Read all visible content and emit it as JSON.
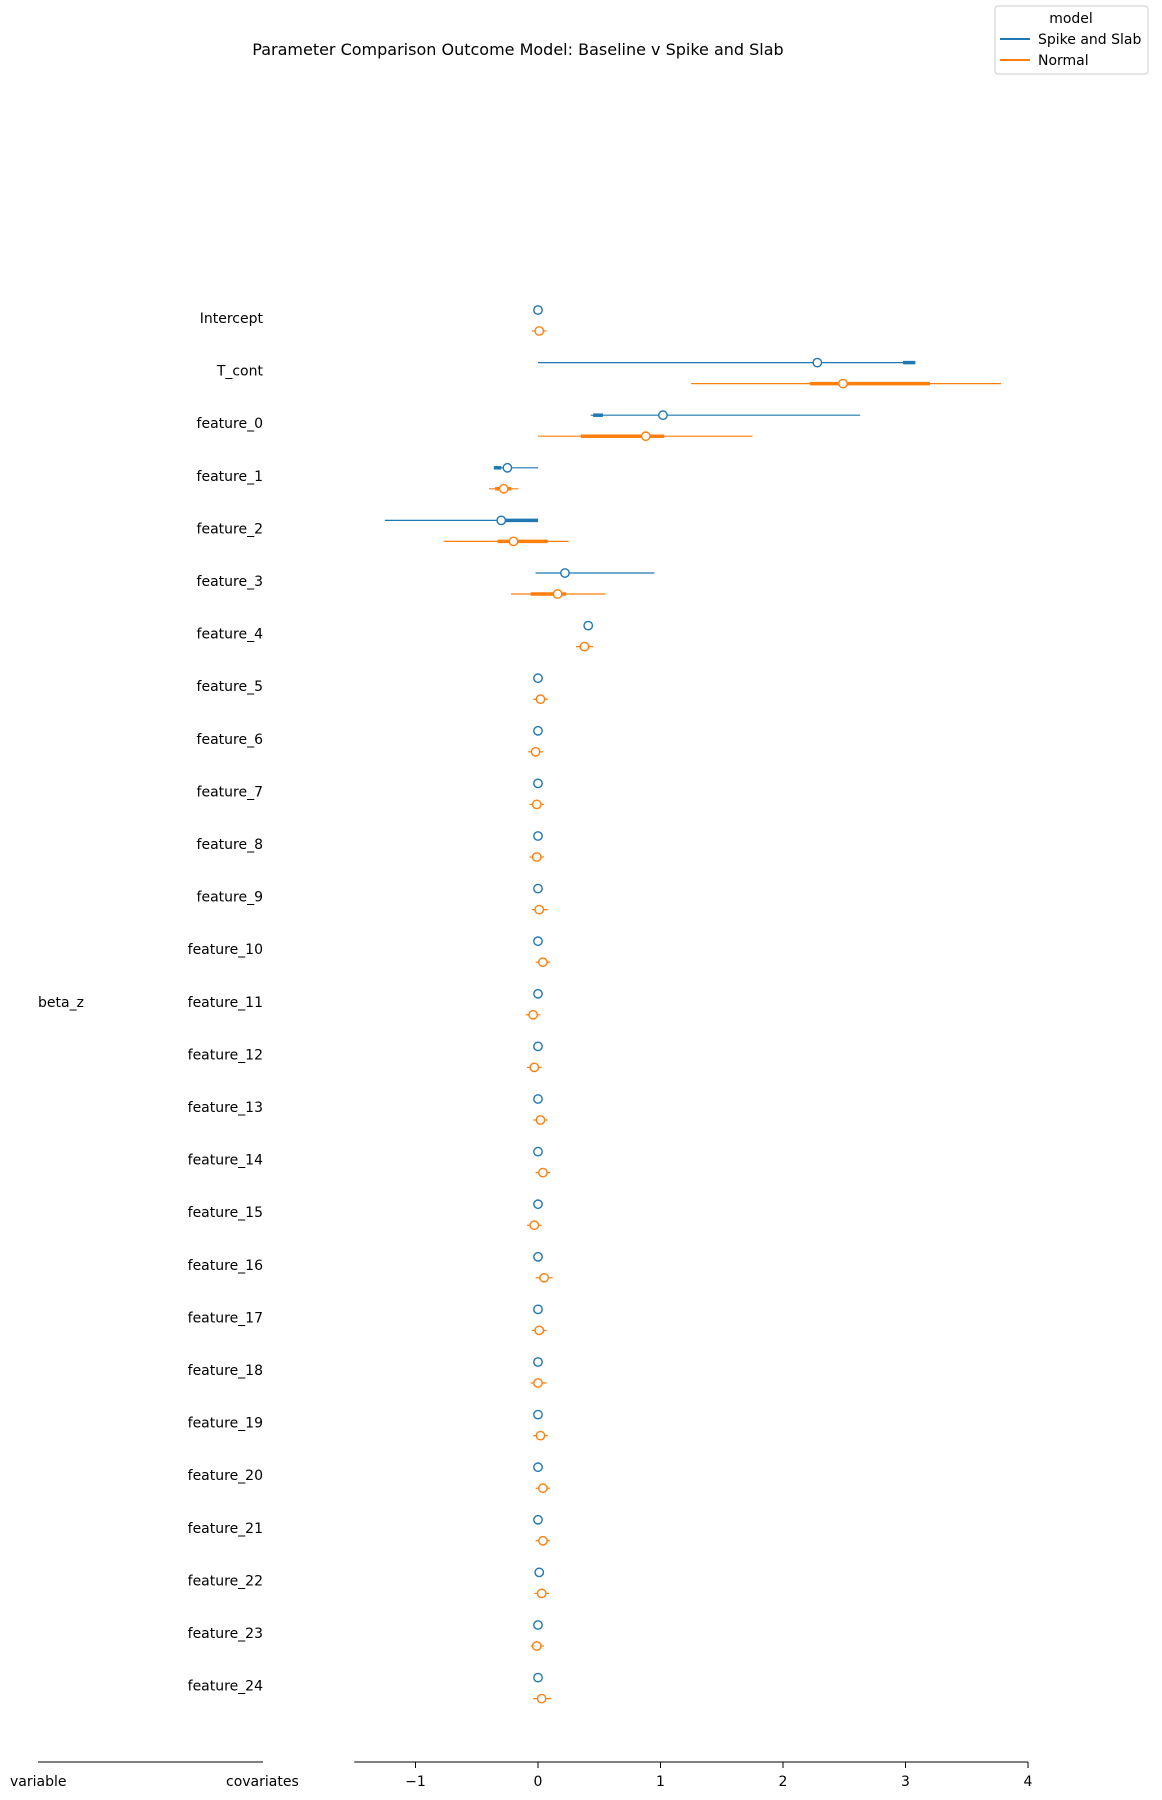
{
  "chart_data": {
    "type": "forest",
    "title": "Parameter Comparison Outcome Model: Baseline v Spike and Slab",
    "legend": {
      "title": "model",
      "placement": "top-right",
      "entries": [
        {
          "name": "Spike and Slab",
          "color": "#1f77b4"
        },
        {
          "name": "Normal",
          "color": "#ff7f0e"
        }
      ]
    },
    "xlim": [
      -1.5,
      4.0
    ],
    "xticks": [
      -1,
      0,
      1,
      2,
      3,
      4
    ],
    "xtick_labels": [
      "−1",
      "0",
      "1",
      "2",
      "3",
      "4"
    ],
    "left_axis_labels": {
      "variable": "variable",
      "covariates": "covariates"
    },
    "variable_name": "beta_z",
    "parameters": [
      "Intercept",
      "T_cont",
      "feature_0",
      "feature_1",
      "feature_2",
      "feature_3",
      "feature_4",
      "feature_5",
      "feature_6",
      "feature_7",
      "feature_8",
      "feature_9",
      "feature_10",
      "feature_11",
      "feature_12",
      "feature_13",
      "feature_14",
      "feature_15",
      "feature_16",
      "feature_17",
      "feature_18",
      "feature_19",
      "feature_20",
      "feature_21",
      "feature_22",
      "feature_23",
      "feature_24"
    ],
    "series": [
      {
        "name": "Spike and Slab",
        "color": "#1f77b4",
        "points": [
          {
            "m": 0.0,
            "lo": 0.0,
            "hi": 0.0,
            "ilo": 0.0,
            "ihi": 0.0
          },
          {
            "m": 2.28,
            "lo": 0.0,
            "hi": 3.08,
            "ilo": 2.98,
            "ihi": 3.08
          },
          {
            "m": 1.02,
            "lo": 0.43,
            "hi": 2.63,
            "ilo": 0.45,
            "ihi": 0.53
          },
          {
            "m": -0.25,
            "lo": -0.36,
            "hi": 0.0,
            "ilo": -0.36,
            "ihi": -0.3
          },
          {
            "m": -0.3,
            "lo": -1.25,
            "hi": 0.0,
            "ilo": -0.3,
            "ihi": 0.0
          },
          {
            "m": 0.22,
            "lo": -0.02,
            "hi": 0.95,
            "ilo": 0.0,
            "ihi": 0.0
          },
          {
            "m": 0.41,
            "lo": 0.41,
            "hi": 0.41,
            "ilo": 0.41,
            "ihi": 0.41
          },
          {
            "m": 0.0,
            "lo": 0.0,
            "hi": 0.0,
            "ilo": 0.0,
            "ihi": 0.0
          },
          {
            "m": 0.0,
            "lo": 0.0,
            "hi": 0.0,
            "ilo": 0.0,
            "ihi": 0.0
          },
          {
            "m": 0.0,
            "lo": 0.0,
            "hi": 0.0,
            "ilo": 0.0,
            "ihi": 0.0
          },
          {
            "m": 0.0,
            "lo": 0.0,
            "hi": 0.0,
            "ilo": 0.0,
            "ihi": 0.0
          },
          {
            "m": 0.0,
            "lo": 0.0,
            "hi": 0.0,
            "ilo": 0.0,
            "ihi": 0.0
          },
          {
            "m": 0.0,
            "lo": 0.0,
            "hi": 0.0,
            "ilo": 0.0,
            "ihi": 0.0
          },
          {
            "m": 0.0,
            "lo": 0.0,
            "hi": 0.0,
            "ilo": 0.0,
            "ihi": 0.0
          },
          {
            "m": 0.0,
            "lo": 0.0,
            "hi": 0.0,
            "ilo": 0.0,
            "ihi": 0.0
          },
          {
            "m": 0.0,
            "lo": 0.0,
            "hi": 0.0,
            "ilo": 0.0,
            "ihi": 0.0
          },
          {
            "m": 0.0,
            "lo": 0.0,
            "hi": 0.0,
            "ilo": 0.0,
            "ihi": 0.0
          },
          {
            "m": 0.0,
            "lo": 0.0,
            "hi": 0.0,
            "ilo": 0.0,
            "ihi": 0.0
          },
          {
            "m": 0.0,
            "lo": 0.0,
            "hi": 0.0,
            "ilo": 0.0,
            "ihi": 0.0
          },
          {
            "m": 0.0,
            "lo": 0.0,
            "hi": 0.0,
            "ilo": 0.0,
            "ihi": 0.0
          },
          {
            "m": 0.0,
            "lo": 0.0,
            "hi": 0.0,
            "ilo": 0.0,
            "ihi": 0.0
          },
          {
            "m": 0.0,
            "lo": 0.0,
            "hi": 0.0,
            "ilo": 0.0,
            "ihi": 0.0
          },
          {
            "m": 0.0,
            "lo": 0.0,
            "hi": 0.0,
            "ilo": 0.0,
            "ihi": 0.0
          },
          {
            "m": 0.0,
            "lo": 0.0,
            "hi": 0.0,
            "ilo": 0.0,
            "ihi": 0.0
          },
          {
            "m": 0.01,
            "lo": 0.01,
            "hi": 0.01,
            "ilo": 0.01,
            "ihi": 0.01
          },
          {
            "m": 0.0,
            "lo": 0.0,
            "hi": 0.0,
            "ilo": 0.0,
            "ihi": 0.0
          },
          {
            "m": 0.0,
            "lo": 0.0,
            "hi": 0.0,
            "ilo": 0.0,
            "ihi": 0.0
          }
        ]
      },
      {
        "name": "Normal",
        "color": "#ff7f0e",
        "points": [
          {
            "m": 0.01,
            "lo": -0.05,
            "hi": 0.07,
            "ilo": -0.02,
            "ihi": 0.04
          },
          {
            "m": 2.49,
            "lo": 1.25,
            "hi": 3.78,
            "ilo": 2.22,
            "ihi": 3.2
          },
          {
            "m": 0.88,
            "lo": 0.0,
            "hi": 1.75,
            "ilo": 0.35,
            "ihi": 1.03
          },
          {
            "m": -0.28,
            "lo": -0.4,
            "hi": -0.16,
            "ilo": -0.35,
            "ihi": -0.22
          },
          {
            "m": -0.2,
            "lo": -0.77,
            "hi": 0.25,
            "ilo": -0.33,
            "ihi": 0.08
          },
          {
            "m": 0.16,
            "lo": -0.22,
            "hi": 0.55,
            "ilo": -0.06,
            "ihi": 0.23
          },
          {
            "m": 0.38,
            "lo": 0.31,
            "hi": 0.45,
            "ilo": 0.34,
            "ihi": 0.42
          },
          {
            "m": 0.02,
            "lo": -0.04,
            "hi": 0.08,
            "ilo": -0.01,
            "ihi": 0.05
          },
          {
            "m": -0.02,
            "lo": -0.08,
            "hi": 0.04,
            "ilo": -0.05,
            "ihi": 0.01
          },
          {
            "m": -0.01,
            "lo": -0.07,
            "hi": 0.05,
            "ilo": -0.04,
            "ihi": 0.02
          },
          {
            "m": -0.01,
            "lo": -0.07,
            "hi": 0.05,
            "ilo": -0.04,
            "ihi": 0.02
          },
          {
            "m": 0.01,
            "lo": -0.05,
            "hi": 0.08,
            "ilo": -0.02,
            "ihi": 0.04
          },
          {
            "m": 0.04,
            "lo": -0.02,
            "hi": 0.1,
            "ilo": 0.01,
            "ihi": 0.07
          },
          {
            "m": -0.04,
            "lo": -0.1,
            "hi": 0.02,
            "ilo": -0.07,
            "ihi": -0.01
          },
          {
            "m": -0.03,
            "lo": -0.09,
            "hi": 0.03,
            "ilo": -0.06,
            "ihi": 0.0
          },
          {
            "m": 0.02,
            "lo": -0.04,
            "hi": 0.08,
            "ilo": -0.01,
            "ihi": 0.05
          },
          {
            "m": 0.04,
            "lo": -0.02,
            "hi": 0.1,
            "ilo": 0.01,
            "ihi": 0.07
          },
          {
            "m": -0.03,
            "lo": -0.09,
            "hi": 0.03,
            "ilo": -0.06,
            "ihi": 0.0
          },
          {
            "m": 0.05,
            "lo": -0.02,
            "hi": 0.12,
            "ilo": 0.01,
            "ihi": 0.08
          },
          {
            "m": 0.01,
            "lo": -0.05,
            "hi": 0.07,
            "ilo": -0.02,
            "ihi": 0.04
          },
          {
            "m": 0.0,
            "lo": -0.06,
            "hi": 0.07,
            "ilo": -0.03,
            "ihi": 0.03
          },
          {
            "m": 0.02,
            "lo": -0.04,
            "hi": 0.08,
            "ilo": -0.01,
            "ihi": 0.05
          },
          {
            "m": 0.04,
            "lo": -0.02,
            "hi": 0.1,
            "ilo": 0.01,
            "ihi": 0.07
          },
          {
            "m": 0.04,
            "lo": -0.02,
            "hi": 0.1,
            "ilo": 0.01,
            "ihi": 0.07
          },
          {
            "m": 0.03,
            "lo": -0.03,
            "hi": 0.09,
            "ilo": 0.0,
            "ihi": 0.06
          },
          {
            "m": -0.01,
            "lo": -0.06,
            "hi": 0.05,
            "ilo": -0.04,
            "ihi": 0.02
          },
          {
            "m": 0.03,
            "lo": -0.04,
            "hi": 0.11,
            "ilo": 0.0,
            "ihi": 0.06
          }
        ]
      }
    ]
  }
}
